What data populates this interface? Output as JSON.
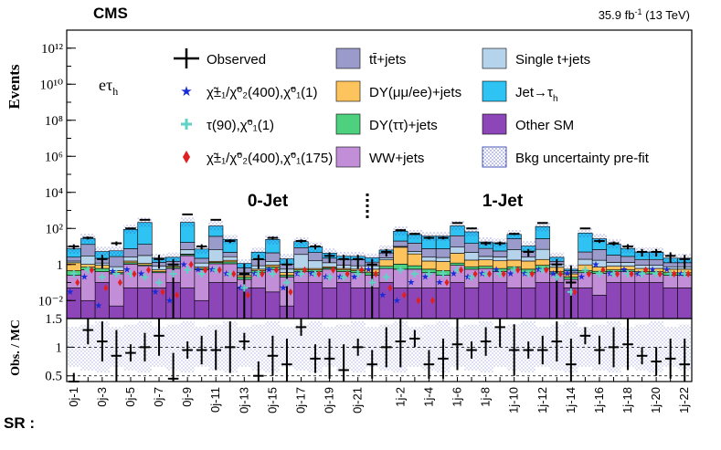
{
  "header": {
    "experiment": "CMS",
    "lumi": "35.9 fb",
    "lumi_sup": "-1",
    "energy": " (13 TeV)"
  },
  "channel_label": {
    "main": "eτ",
    "sub": "h"
  },
  "region_labels": {
    "zero_jet": "0-Jet",
    "one_jet": "1-Jet"
  },
  "legend": [
    {
      "key": "observed",
      "text": "Observed",
      "style": "marker-cross",
      "color": "#000000"
    },
    {
      "key": "ttbar",
      "text": "tt̄+jets",
      "style": "box",
      "color": "#9b9bcb"
    },
    {
      "key": "singlet",
      "text": "Single t+jets",
      "style": "box",
      "color": "#b6d3ec"
    },
    {
      "key": "sig1",
      "text": "χ̃±₁/χ̃⁰₂(400),χ̃⁰₁(1)",
      "style": "marker-star",
      "color": "#1a2bd8"
    },
    {
      "key": "dyll",
      "text": "DY(μμ/ee)+jets",
      "style": "box",
      "color": "#fdc45d"
    },
    {
      "key": "jettau",
      "text": "Jet→τ",
      "sub": "h",
      "style": "box",
      "color": "#2ec3f2"
    },
    {
      "key": "sig2",
      "text": "τ(90),χ̃⁰₁(1)",
      "pre": "τ",
      "pre_sub": "L",
      "style": "marker-plus",
      "color": "#5fd3c4"
    },
    {
      "key": "dytt",
      "text": "DY(ττ)+jets",
      "style": "box",
      "color": "#4dd17e"
    },
    {
      "key": "othersm",
      "text": "Other SM",
      "style": "box",
      "color": "#8c46b8"
    },
    {
      "key": "sig3",
      "text": "χ̃±₁/χ̃⁰₂(400),χ̃⁰₁(175)",
      "style": "marker-diamond",
      "color": "#e02020"
    },
    {
      "key": "ww",
      "text": "WW+jets",
      "style": "box",
      "color": "#c28ed8"
    },
    {
      "key": "unc",
      "text": "Bkg uncertainty pre-fit",
      "style": "hatch",
      "color": "#2233aa"
    }
  ],
  "axes": {
    "top_ylabel": "Events",
    "bottom_ylabel": "Obs. / MC",
    "xlabel": "SR :",
    "top_yticks": [
      "10⁻²",
      "1",
      "10²",
      "10⁴",
      "10⁶",
      "10⁸",
      "10¹⁰",
      "10¹²"
    ],
    "bottom_yticks": [
      "0.5",
      "1",
      "1.5"
    ]
  },
  "chart_data": {
    "type": "bar",
    "stacked": true,
    "y_scale": "log",
    "ylim": [
      0.001,
      10000000000000
    ],
    "ratio_ylim": [
      0.4,
      1.5
    ],
    "categories": [
      "0j-1",
      "0j-2",
      "0j-3",
      "0j-4",
      "0j-5",
      "0j-6",
      "0j-7",
      "0j-8",
      "0j-9",
      "0j-10",
      "0j-11",
      "0j-12",
      "0j-13",
      "0j-14",
      "0j-15",
      "0j-16",
      "0j-17",
      "0j-18",
      "0j-19",
      "0j-20",
      "0j-21",
      "0j-22",
      "1j-1",
      "1j-2",
      "1j-3",
      "1j-4",
      "1j-5",
      "1j-6",
      "1j-7",
      "1j-8",
      "1j-9",
      "1j-10",
      "1j-11",
      "1j-12",
      "1j-13",
      "1j-14",
      "1j-15",
      "1j-16",
      "1j-17",
      "1j-18",
      "1j-19",
      "1j-20",
      "1j-21",
      "1j-22"
    ],
    "tick_labels": [
      "0j-1",
      "0j-3",
      "0j-5",
      "0j-7",
      "0j-9",
      "0j-11",
      "0j-13",
      "0j-15",
      "0j-17",
      "0j-19",
      "0j-21",
      "1j-2",
      "1j-4",
      "1j-6",
      "1j-8",
      "1j-10",
      "1j-12",
      "1j-14",
      "1j-16",
      "1j-18",
      "1j-20",
      "1j-22"
    ],
    "series": [
      {
        "name": "Other SM",
        "color": "#8c46b8",
        "values": [
          0.05,
          0.01,
          0.1,
          0.005,
          0.05,
          0.05,
          0.05,
          0.1,
          0.05,
          0.01,
          0.1,
          0.1,
          0.05,
          0.05,
          0.03,
          0.005,
          0.1,
          0.1,
          0.05,
          0.1,
          0.05,
          0.05,
          0.1,
          0.05,
          0.05,
          0.05,
          0.05,
          0.1,
          0.05,
          0.1,
          0.1,
          0.05,
          0.05,
          0.1,
          0.1,
          0.05,
          0.05,
          0.02,
          0.1,
          0.1,
          0.1,
          0.1,
          0.05,
          0.05
        ]
      },
      {
        "name": "WW+jets",
        "color": "#c28ed8",
        "values": [
          0.2,
          0.5,
          0.3,
          0.3,
          1.0,
          0.8,
          0.3,
          0.5,
          3.0,
          0.5,
          1.0,
          1.0,
          0.1,
          0.3,
          0.5,
          0.2,
          0.3,
          0.3,
          0.5,
          0.3,
          0.3,
          0.2,
          0.5,
          0.5,
          0.5,
          0.3,
          0.2,
          0.8,
          0.5,
          0.5,
          0.3,
          0.5,
          0.3,
          0.5,
          0.2,
          0.1,
          0.3,
          0.3,
          0.3,
          0.3,
          0.2,
          0.2,
          0.2,
          0.2
        ]
      },
      {
        "name": "DY(ττ)+jets",
        "color": "#4dd17e",
        "values": [
          0.2,
          0.2,
          0.2,
          0.05,
          0.2,
          0.1,
          0.05,
          0.1,
          0.5,
          0.1,
          0.2,
          0.3,
          0.05,
          0.1,
          0.2,
          0.05,
          0.1,
          0.1,
          0.1,
          0.1,
          0.1,
          0.1,
          0.2,
          0.5,
          0.3,
          0.2,
          0.2,
          0.3,
          0.2,
          0.2,
          0.2,
          0.2,
          0.2,
          0.3,
          0.1,
          0.05,
          0.1,
          0.1,
          0.1,
          0.1,
          0.1,
          0.1,
          0.1,
          0.1
        ]
      },
      {
        "name": "DY(μμ/ee)+jets",
        "color": "#fdc45d",
        "values": [
          0.8,
          0.3,
          0.3,
          0.1,
          0.3,
          0.2,
          0.1,
          0.1,
          0.2,
          0.1,
          0.2,
          0.3,
          0.05,
          0.1,
          0.2,
          0.1,
          0.1,
          0.1,
          0.1,
          0.1,
          0.1,
          0.2,
          1.0,
          8.0,
          3.0,
          1.0,
          1.0,
          3.0,
          1.0,
          1.0,
          1.0,
          1.0,
          1.0,
          1.0,
          0.3,
          0.1,
          0.5,
          0.3,
          0.3,
          0.3,
          0.2,
          0.2,
          0.2,
          0.2
        ]
      },
      {
        "name": "Single t+jets",
        "color": "#b6d3ec",
        "values": [
          0.3,
          2.0,
          0.3,
          0.3,
          1.0,
          2.0,
          0.3,
          0.2,
          3.0,
          0.5,
          5.0,
          1.0,
          0.1,
          0.3,
          0.5,
          0.2,
          3.0,
          1.0,
          0.5,
          0.3,
          0.3,
          0.3,
          0.5,
          1.0,
          1.5,
          1.0,
          1.0,
          5.0,
          3.0,
          1.0,
          1.0,
          5.0,
          1.0,
          5.0,
          0.3,
          0.05,
          1.0,
          1.0,
          0.5,
          0.5,
          0.3,
          0.3,
          0.2,
          0.2
        ]
      },
      {
        "name": "tt̄+jets",
        "color": "#9b9bcb",
        "values": [
          1.0,
          10,
          1.0,
          2.0,
          5.0,
          10,
          0.5,
          0.5,
          10,
          1.0,
          30,
          2.0,
          0.3,
          1.0,
          3.0,
          0.5,
          5.0,
          3.0,
          1.0,
          1.0,
          1.0,
          0.5,
          2.0,
          10,
          10,
          5.0,
          5.0,
          30,
          10,
          5.0,
          3.0,
          20,
          3.0,
          20,
          0.5,
          0.1,
          3.0,
          5.0,
          2.0,
          1.5,
          1.0,
          1.0,
          0.5,
          0.5
        ]
      },
      {
        "name": "Jet→τh",
        "color": "#2ec3f2",
        "values": [
          5,
          15,
          3,
          3,
          80,
          200,
          1,
          1,
          200,
          5,
          100,
          20,
          0.5,
          3,
          20,
          1,
          10,
          5,
          2,
          1,
          1,
          1,
          2,
          50,
          30,
          30,
          30,
          100,
          50,
          10,
          10,
          20,
          5,
          100,
          1,
          0.1,
          50,
          20,
          10,
          5,
          3,
          3,
          1,
          1
        ]
      }
    ],
    "observed": [
      10,
      30,
      2,
      15,
      100,
      300,
      2,
      1,
      600,
      10,
      300,
      20,
      0.3,
      2,
      30,
      1,
      20,
      10,
      3,
      2,
      2,
      1,
      5,
      80,
      50,
      30,
      30,
      200,
      100,
      15,
      15,
      50,
      5,
      200,
      1,
      0.1,
      100,
      20,
      15,
      10,
      5,
      5,
      3,
      2
    ],
    "observed_ratio": [
      0.4,
      1.3,
      1.1,
      0.85,
      0.9,
      1.0,
      1.2,
      0.45,
      0.95,
      0.95,
      0.95,
      1.0,
      1.1,
      0.5,
      0.85,
      0.7,
      1.35,
      0.8,
      0.8,
      0.6,
      1.0,
      0.7,
      1.0,
      1.1,
      1.15,
      0.7,
      0.8,
      1.05,
      0.95,
      1.1,
      1.35,
      0.95,
      0.95,
      0.95,
      1.1,
      0.7,
      1.2,
      0.95,
      1.0,
      1.05,
      0.85,
      0.75,
      0.8,
      0.7
    ],
    "signals": [
      {
        "name": "χ̃±₁/χ̃⁰₂(400),χ̃⁰₁(1)",
        "marker": "star",
        "color": "#1a2bd8",
        "values": [
          0.03,
          0.2,
          0.005,
          0.4,
          0.5,
          0.3,
          0.03,
          0.01,
          1.0,
          0.5,
          0.5,
          0.3,
          0.05,
          0.3,
          0.5,
          0.05,
          0.3,
          0.3,
          0.2,
          0.2,
          0.2,
          0.5,
          0.02,
          0.01,
          0.1,
          0.2,
          0.1,
          0.3,
          0.2,
          0.3,
          0.5,
          0.3,
          0.3,
          0.5,
          0.3,
          0.3,
          0.2,
          1.0,
          0.3,
          0.5,
          0.3,
          0.5,
          0.5,
          0.3
        ]
      },
      {
        "name": "τL(90),χ̃⁰₁(1)",
        "marker": "plus",
        "color": "#5fd3c4",
        "values": [
          0.3,
          0.5,
          0.2,
          0.3,
          0.3,
          0.2,
          0.1,
          0.3,
          0.5,
          0.3,
          0.5,
          0.3,
          0.05,
          0.3,
          0.3,
          0.1,
          0.3,
          0.3,
          0.2,
          0.2,
          0.3,
          0.1,
          0.2,
          0.5,
          0.3,
          0.3,
          0.3,
          0.5,
          0.2,
          0.3,
          0.3,
          0.5,
          0.3,
          0.5,
          0.2,
          0.03,
          0.5,
          0.3,
          0.3,
          0.3,
          0.3,
          0.3,
          0.3,
          0.3
        ]
      },
      {
        "name": "χ̃±₁/χ̃⁰₂(400),χ̃⁰₁(175)",
        "marker": "diamond",
        "color": "#e02020",
        "values": [
          0.1,
          0.5,
          0.05,
          0.1,
          0.3,
          0.5,
          0.03,
          0.02,
          1.0,
          0.5,
          0.5,
          0.3,
          0.02,
          0.3,
          0.5,
          0.03,
          0.5,
          0.3,
          0.5,
          0.3,
          0.5,
          0.3,
          0.05,
          0.02,
          0.01,
          0.01,
          0.1,
          0.5,
          0.3,
          0.3,
          0.3,
          0.5,
          0.3,
          0.5,
          0.3,
          0.03,
          0.3,
          0.5,
          0.3,
          0.3,
          0.5,
          0.3,
          0.3,
          0.3
        ]
      }
    ]
  }
}
